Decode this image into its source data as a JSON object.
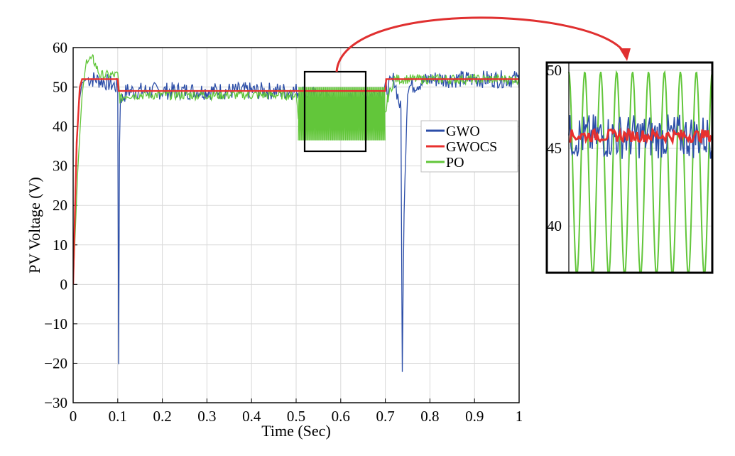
{
  "colors": {
    "GWO": "#2c4ea8",
    "GWOCS": "#e8302e",
    "PO": "#62c63a",
    "grid": "#d9d9d9",
    "callout": "#e03030"
  },
  "chart_data": [
    {
      "type": "line",
      "xlabel": "Time (Sec)",
      "ylabel": "PV Voltage (V)",
      "xlim": [
        0,
        1
      ],
      "ylim": [
        -30,
        60
      ],
      "xticks": [
        0,
        0.1,
        0.2,
        0.3,
        0.4,
        0.5,
        0.6,
        0.7,
        0.8,
        0.9,
        1
      ],
      "xtick_labels": [
        "0",
        "0.1",
        "0.2",
        "0.3",
        "0.4",
        "0.5",
        "0.6",
        "0.7",
        "0.8",
        "0.9",
        "1"
      ],
      "yticks": [
        -30,
        -20,
        -10,
        0,
        10,
        20,
        30,
        40,
        50,
        60
      ],
      "ytick_labels": [
        "−30",
        "−20",
        "−10",
        "0",
        "10",
        "20",
        "30",
        "40",
        "50",
        "60"
      ],
      "grid": true,
      "legend_position": "right-middle",
      "series": [
        {
          "name": "GWO",
          "x": [
            0,
            0.005,
            0.012,
            0.02,
            0.03,
            0.05,
            0.08,
            0.1,
            0.102,
            0.104,
            0.106,
            0.11,
            0.12,
            0.2,
            0.3,
            0.4,
            0.5,
            0.6,
            0.7,
            0.72,
            0.735,
            0.738,
            0.742,
            0.75,
            0.8,
            0.9,
            1.0
          ],
          "y": [
            0,
            25,
            45,
            51,
            52,
            52,
            51,
            50,
            -19,
            35,
            48,
            47,
            49,
            49,
            49,
            49,
            49,
            46,
            49,
            52,
            44,
            -23,
            20,
            50,
            52,
            52,
            52
          ]
        },
        {
          "name": "GWOCS",
          "x": [
            0,
            0.008,
            0.015,
            0.02,
            0.1,
            0.102,
            0.11,
            0.5,
            0.7,
            0.702,
            1.0
          ],
          "y": [
            0,
            36,
            50,
            52,
            52,
            49,
            49,
            49,
            49,
            52,
            52
          ]
        },
        {
          "name": "PO",
          "x": [
            0,
            0.01,
            0.02,
            0.03,
            0.045,
            0.06,
            0.08,
            0.1,
            0.105,
            0.12,
            0.2,
            0.3,
            0.4,
            0.5,
            0.505,
            0.7,
            0.705,
            0.72,
            0.8,
            0.9,
            1.0
          ],
          "y": [
            0,
            28,
            48,
            57,
            57,
            53,
            53,
            53,
            47,
            48,
            48,
            48,
            48,
            48,
            43,
            43,
            47,
            52,
            52,
            52,
            52
          ],
          "oscillation_band": {
            "x_range": [
              0.505,
              0.7
            ],
            "y_range": [
              36.5,
              50
            ]
          }
        }
      ]
    },
    {
      "type": "line",
      "ylim": [
        37,
        50.5
      ],
      "yticks": [
        40,
        45,
        50
      ],
      "ytick_labels": [
        "40",
        "45",
        "50"
      ],
      "grid": true,
      "series": [
        {
          "name": "GWO",
          "center": 45.8,
          "band": [
            44.3,
            47.2
          ]
        },
        {
          "name": "GWOCS",
          "center": 45.8,
          "band": [
            45.4,
            46.2
          ]
        },
        {
          "name": "PO",
          "center": 43.3,
          "band": [
            36.8,
            49.9
          ],
          "cycles": 9
        }
      ]
    }
  ]
}
